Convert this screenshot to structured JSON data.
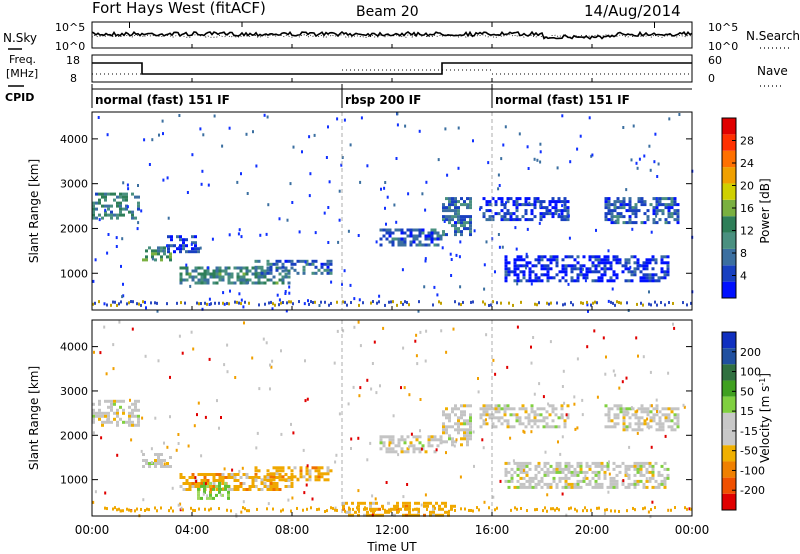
{
  "header": {
    "title": "Fort Hays West (fitACF)",
    "beam": "Beam 20",
    "date": "14/Aug/2014"
  },
  "noise_panel": {
    "left_label": "N.Sky",
    "right_label": "N.Search",
    "left_ticks": [
      "10^5",
      "10^0"
    ],
    "right_ticks": [
      "10^5",
      "10^0"
    ]
  },
  "freq_panel": {
    "left_label_1": "Freq.",
    "left_label_2": "[MHz]",
    "right_label": "Nave",
    "left_ticks": [
      "18",
      "8"
    ],
    "right_ticks": [
      "60",
      "0"
    ]
  },
  "cpid": {
    "label": "CPID",
    "segments": [
      {
        "name": "normal (fast) 151 IF",
        "start": 0,
        "end": 10
      },
      {
        "name": "rbsp 200 IF",
        "start": 10,
        "end": 16
      },
      {
        "name": "normal (fast) 151 IF",
        "start": 16,
        "end": 24
      }
    ]
  },
  "chart_data": [
    {
      "type": "heatmap",
      "title": "Power",
      "ylabel": "Slant Range [km]",
      "ylim": [
        180,
        4600
      ],
      "yticks": [
        "1000",
        "2000",
        "3000",
        "4000"
      ],
      "xlim": [
        0,
        24
      ],
      "colorbar": {
        "label": "Power [dB]",
        "ticks": [
          "4",
          "8",
          "12",
          "16",
          "20",
          "24",
          "28"
        ],
        "colors": [
          "#0010ff",
          "#1840c0",
          "#3b6fa0",
          "#4a9080",
          "#2e7e58",
          "#7ab040",
          "#d0d000",
          "#f0a000",
          "#ff7000",
          "#ff3000",
          "#e00000"
        ]
      },
      "regions": [
        {
          "t": [
            0.0,
            1.9
          ],
          "r": [
            2200,
            2800
          ],
          "level": 0.55
        },
        {
          "t": [
            2.0,
            3.2
          ],
          "r": [
            1300,
            1600
          ],
          "level": 0.7
        },
        {
          "t": [
            3.0,
            4.3
          ],
          "r": [
            1500,
            1850
          ],
          "level": 0.2
        },
        {
          "t": [
            3.5,
            8.0
          ],
          "r": [
            800,
            1150
          ],
          "level": 0.6
        },
        {
          "t": [
            6.5,
            9.6
          ],
          "r": [
            1000,
            1300
          ],
          "level": 0.35
        },
        {
          "t": [
            11.5,
            14.0
          ],
          "r": [
            1600,
            2000
          ],
          "level": 0.3
        },
        {
          "t": [
            14.0,
            15.2
          ],
          "r": [
            1800,
            2700
          ],
          "level": 0.4
        },
        {
          "t": [
            15.5,
            19.0
          ],
          "r": [
            2200,
            2700
          ],
          "level": 0.2
        },
        {
          "t": [
            20.5,
            23.5
          ],
          "r": [
            2100,
            2700
          ],
          "level": 0.35
        },
        {
          "t": [
            16.5,
            23.0
          ],
          "r": [
            800,
            1400
          ],
          "level": 0.15
        }
      ]
    },
    {
      "type": "heatmap",
      "title": "Velocity",
      "ylabel": "Slant Range [km]",
      "xlabel": "Time UT",
      "ylim": [
        180,
        4600
      ],
      "yticks": [
        "1000",
        "2000",
        "3000",
        "4000"
      ],
      "xticks": [
        "00:00",
        "04:00",
        "08:00",
        "12:00",
        "16:00",
        "20:00",
        "00:00"
      ],
      "xlim": [
        0,
        24
      ],
      "colorbar": {
        "label": "Velocity [m s^-1]",
        "ticks": [
          "200",
          "100",
          "50",
          "15",
          "-15",
          "-50",
          "-100",
          "-200"
        ],
        "colors": [
          "#1030c0",
          "#2050a0",
          "#307040",
          "#40a020",
          "#80d040",
          "#c8c8c8",
          "#c8c8c8",
          "#f0b000",
          "#f08000",
          "#f05000",
          "#e00000"
        ]
      },
      "regions": [
        {
          "t": [
            0.0,
            1.9
          ],
          "r": [
            2200,
            2800
          ],
          "level": "grey"
        },
        {
          "t": [
            2.0,
            3.2
          ],
          "r": [
            1300,
            1600
          ],
          "level": "grey"
        },
        {
          "t": [
            3.5,
            8.0
          ],
          "r": [
            800,
            1150
          ],
          "level": "orange"
        },
        {
          "t": [
            4.2,
            5.5
          ],
          "r": [
            550,
            950
          ],
          "level": "green"
        },
        {
          "t": [
            6.5,
            9.6
          ],
          "r": [
            1000,
            1300
          ],
          "level": "orange"
        },
        {
          "t": [
            10.0,
            14.5
          ],
          "r": [
            200,
            500
          ],
          "level": "orange"
        },
        {
          "t": [
            11.5,
            14.0
          ],
          "r": [
            1600,
            2000
          ],
          "level": "grey"
        },
        {
          "t": [
            14.0,
            15.2
          ],
          "r": [
            1800,
            2700
          ],
          "level": "grey"
        },
        {
          "t": [
            15.5,
            19.0
          ],
          "r": [
            2200,
            2700
          ],
          "level": "grey"
        },
        {
          "t": [
            20.5,
            23.5
          ],
          "r": [
            2100,
            2700
          ],
          "level": "grey"
        },
        {
          "t": [
            16.5,
            23.0
          ],
          "r": [
            800,
            1400
          ],
          "level": "grey"
        }
      ]
    }
  ]
}
